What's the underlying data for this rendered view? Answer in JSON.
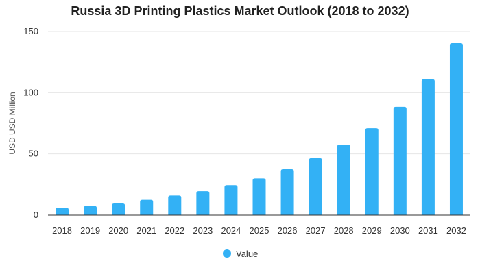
{
  "chart_data": {
    "type": "bar",
    "title": "Russia 3D Printing Plastics Market Outlook (2018 to 2032)",
    "ylabel": "USD USD Million",
    "xlabel": "",
    "categories": [
      "2018",
      "2019",
      "2020",
      "2021",
      "2022",
      "2023",
      "2024",
      "2025",
      "2026",
      "2027",
      "2028",
      "2029",
      "2030",
      "2031",
      "2032"
    ],
    "series": [
      {
        "name": "Value",
        "values": [
          6,
          7.5,
          9.5,
          12.5,
          16,
          19.5,
          24.5,
          30,
          37.5,
          46.5,
          57.5,
          71,
          88.5,
          111,
          140.5
        ]
      }
    ],
    "ylim": [
      0,
      150
    ],
    "yticks": [
      0,
      50,
      100,
      150
    ],
    "grid": true,
    "legend_position": "bottom-center",
    "colors": {
      "bar": "#33b1f5",
      "grid": "#e6e6e6",
      "axis": "#333333"
    }
  }
}
